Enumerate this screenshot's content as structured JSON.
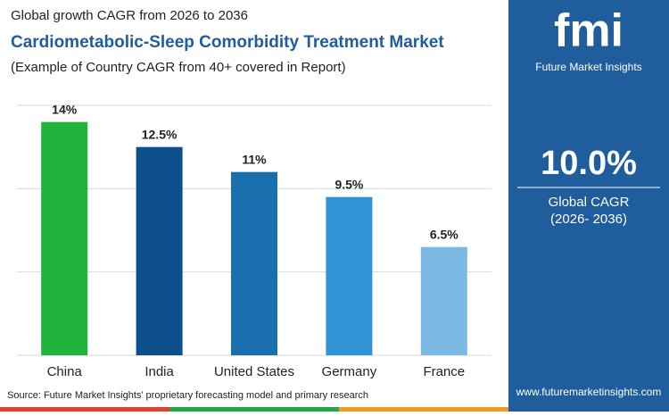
{
  "chart_data": {
    "type": "bar",
    "overline": "Global growth CAGR from 2026 to 2036",
    "title": "Cardiometabolic-Sleep Comorbidity Treatment Market",
    "subtitle": "(Example of Country CAGR from 40+ covered in Report)",
    "categories": [
      "China",
      "India",
      "United States",
      "Germany",
      "France"
    ],
    "values": [
      14,
      12.5,
      11,
      9.5,
      6.5
    ],
    "value_labels": [
      "14%",
      "12.5%",
      "11%",
      "9.5%",
      "6.5%"
    ],
    "colors": [
      "#1fb33c",
      "#0c4f8b",
      "#1a6fae",
      "#2f93d6",
      "#7bb8e3"
    ],
    "ylim": [
      0,
      15
    ],
    "yticks": [
      0,
      5,
      10,
      15
    ],
    "grid": true
  },
  "source": "Source: Future Market Insights' proprietary forecasting model and primary research",
  "logo": {
    "mark": "fmi",
    "name": "Future Market Insights"
  },
  "panel": {
    "value": "10.0%",
    "label": "Global CAGR",
    "period": "(2026- 2036)"
  },
  "url": "www.futuremarketinsights.com"
}
